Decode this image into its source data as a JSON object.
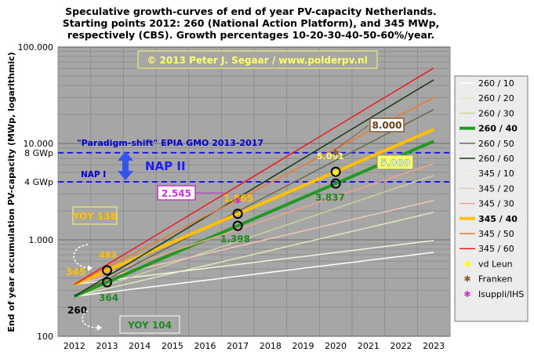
{
  "chart_data": {
    "type": "line",
    "title_lines": [
      "Speculative growth-curves of end of year PV-capacity Netherlands.",
      "Starting points 2012: 260 (National Action Platform), and 345 MWp,",
      "respectively (CBS). Growth percentages 10-20-30-40-50-60%/year."
    ],
    "ylabel": "End of year accumulation PV-capacity (MWp, logarithmic)",
    "xlabel": "",
    "y_scale": "log",
    "ylim": [
      100,
      100000
    ],
    "y_ticks": [
      100,
      1000,
      10000,
      100000
    ],
    "y_tick_labels": [
      "100",
      "1.000",
      "10.000",
      "100.000"
    ],
    "x": [
      "2012",
      "2013",
      "2014",
      "2015",
      "2016",
      "2017",
      "2018",
      "2019",
      "2020",
      "2021",
      "2022",
      "2023"
    ],
    "grid": true,
    "legend_position": "right",
    "series": [
      {
        "name": "260 / 10",
        "start": 260,
        "growth": 0.1,
        "color": "#ffffff",
        "width": 1.5
      },
      {
        "name": "260 / 20",
        "start": 260,
        "growth": 0.2,
        "color": "#dfe8b8",
        "width": 1.5
      },
      {
        "name": "260 / 30",
        "start": 260,
        "growth": 0.3,
        "color": "#c7d59a",
        "width": 1.5
      },
      {
        "name": "260 / 40",
        "start": 260,
        "growth": 0.4,
        "color": "#229a22",
        "width": 4
      },
      {
        "name": "260 / 50",
        "start": 260,
        "growth": 0.5,
        "color": "#6b6b4a",
        "width": 1.5
      },
      {
        "name": "260 / 60",
        "start": 260,
        "growth": 0.6,
        "color": "#123c12",
        "width": 1.5
      },
      {
        "name": "345 / 10",
        "start": 345,
        "growth": 0.1,
        "color": "#f5f5d6",
        "width": 1.5
      },
      {
        "name": "345 / 20",
        "start": 345,
        "growth": 0.2,
        "color": "#f3c7b8",
        "width": 1.5
      },
      {
        "name": "345 / 30",
        "start": 345,
        "growth": 0.3,
        "color": "#f2a58a",
        "width": 1.5
      },
      {
        "name": "345 / 40",
        "start": 345,
        "growth": 0.4,
        "color": "#ffc000",
        "width": 4
      },
      {
        "name": "345 / 50",
        "start": 345,
        "growth": 0.5,
        "color": "#f07a2a",
        "width": 1.5
      },
      {
        "name": "345 / 60",
        "start": 345,
        "growth": 0.6,
        "color": "#ee1c1c",
        "width": 1.5
      }
    ],
    "markers": [
      {
        "name": "vd Leun",
        "symbol": "✱",
        "color": "#ffff00"
      },
      {
        "name": "Franken",
        "symbol": "✱",
        "color": "#8a5a2a"
      },
      {
        "name": "Isuppli/IHS",
        "symbol": "✱",
        "color": "#cc33cc"
      }
    ],
    "reference_lines": [
      {
        "label": "8 GWp",
        "value": 8000
      },
      {
        "label": "4 GWp",
        "value": 4000
      }
    ],
    "annotations": {
      "copyright": "© 2013 Peter J. Segaar / www.polderpv.nl",
      "paradigm": "\"Paradigm-shift\" EPIA GMO 2013-2017",
      "nap1": "NAP I",
      "nap2": "NAP II",
      "val_2545": "2.545",
      "val_8000": "8.000",
      "val_5000": "5.000",
      "val_5091": "5.091",
      "val_3837": "3.837",
      "val_1865": "1.865",
      "val_1398": "1.398",
      "val_483": "483",
      "val_364": "364",
      "val_345": "345",
      "val_260": "260",
      "yoy138": "YOY 138",
      "yoy104": "YOY 104"
    }
  }
}
